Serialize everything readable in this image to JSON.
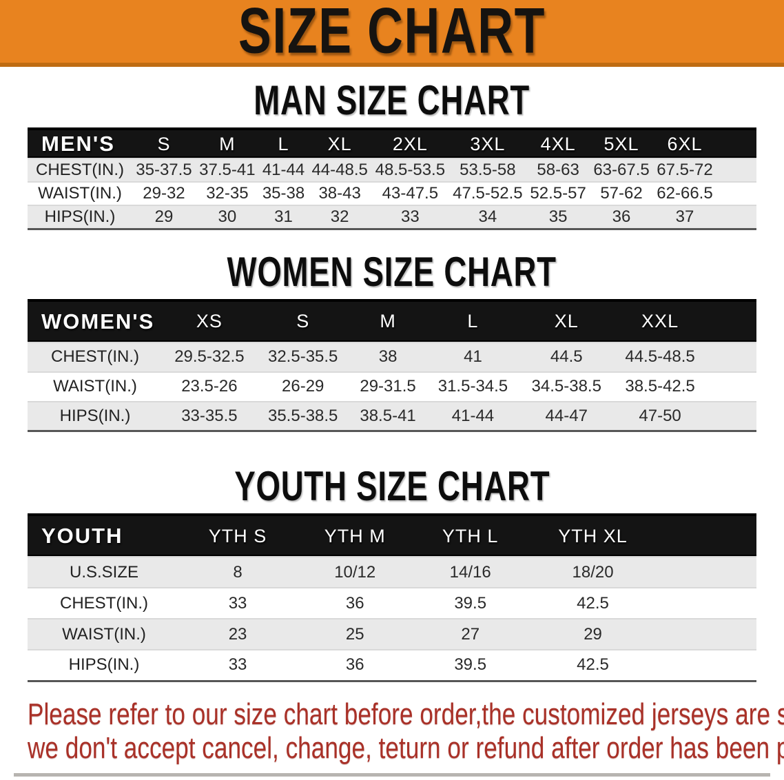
{
  "banner": {
    "title": "SIZE CHART",
    "bg_color": "#e8831f",
    "edge_color": "#bf6c12"
  },
  "sections": [
    {
      "title": "MAN SIZE CHART",
      "header_label": "MEN'S",
      "columns": [
        "S",
        "M",
        "L",
        "XL",
        "2XL",
        "3XL",
        "4XL",
        "5XL",
        "6XL"
      ],
      "rows": [
        {
          "label": "CHEST(IN.)",
          "values": [
            "35-37.5",
            "37.5-41",
            "41-44",
            "44-48.5",
            "48.5-53.5",
            "53.5-58",
            "58-63",
            "63-67.5",
            "67.5-72"
          ]
        },
        {
          "label": "WAIST(IN.)",
          "values": [
            "29-32",
            "32-35",
            "35-38",
            "38-43",
            "43-47.5",
            "47.5-52.5",
            "52.5-57",
            "57-62",
            "62-66.5"
          ]
        },
        {
          "label": "HIPS(IN.)",
          "values": [
            "29",
            "30",
            "31",
            "32",
            "33",
            "34",
            "35",
            "36",
            "37"
          ]
        }
      ]
    },
    {
      "title": "WOMEN SIZE CHART",
      "header_label": "WOMEN'S",
      "columns": [
        "XS",
        "S",
        "M",
        "L",
        "XL",
        "XXL"
      ],
      "rows": [
        {
          "label": "CHEST(IN.)",
          "values": [
            "29.5-32.5",
            "32.5-35.5",
            "38",
            "41",
            "44.5",
            "44.5-48.5"
          ]
        },
        {
          "label": "WAIST(IN.)",
          "values": [
            "23.5-26",
            "26-29",
            "29-31.5",
            "31.5-34.5",
            "34.5-38.5",
            "38.5-42.5"
          ]
        },
        {
          "label": "HIPS(IN.)",
          "values": [
            "33-35.5",
            "35.5-38.5",
            "38.5-41",
            "41-44",
            "44-47",
            "47-50"
          ]
        }
      ]
    },
    {
      "title": "YOUTH SIZE CHART",
      "header_label": "YOUTH",
      "columns": [
        "YTH S",
        "YTH M",
        "YTH L",
        "YTH XL"
      ],
      "rows": [
        {
          "label": "U.S.SIZE",
          "values": [
            "8",
            "10/12",
            "14/16",
            "18/20"
          ]
        },
        {
          "label": "CHEST(IN.)",
          "values": [
            "33",
            "36",
            "39.5",
            "42.5"
          ]
        },
        {
          "label": "WAIST(IN.)",
          "values": [
            "23",
            "25",
            "27",
            "29"
          ]
        },
        {
          "label": "HIPS(IN.)",
          "values": [
            "33",
            "36",
            "39.5",
            "42.5"
          ]
        }
      ]
    }
  ],
  "disclaimer": {
    "line1": "Please refer to our size chart before order,the customized jerseys are special products,",
    "line2": "we don't accept cancel, change, teturn or refund after order has been placed!",
    "color": "#a93128"
  }
}
